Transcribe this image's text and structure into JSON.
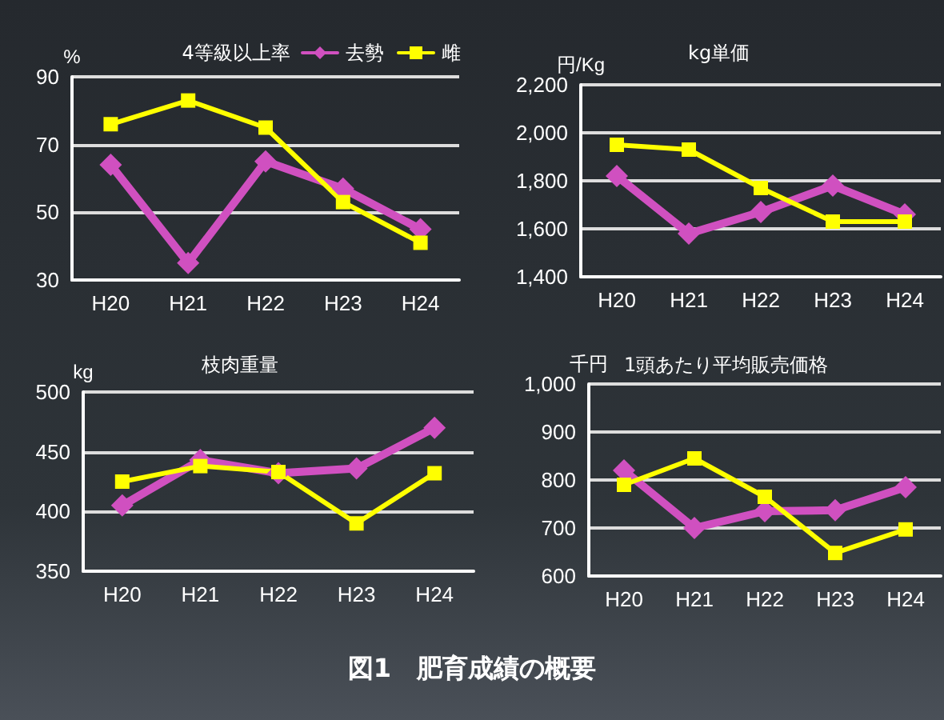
{
  "chart_data": [
    {
      "type": "line",
      "title": "4等級以上率",
      "ylabel": "%",
      "categories": [
        "H20",
        "H21",
        "H22",
        "H23",
        "H24"
      ],
      "ylim": [
        30,
        90
      ],
      "yticks": [
        30,
        50,
        70,
        90
      ],
      "grid": "y",
      "legend": "top right",
      "series": [
        {
          "name": "去勢",
          "color": "#d050c0",
          "marker": "diamond",
          "values": [
            64,
            35,
            65,
            57,
            45
          ]
        },
        {
          "name": "雌",
          "color": "#ffff00",
          "marker": "square",
          "values": [
            76,
            83,
            75,
            53,
            41
          ]
        }
      ]
    },
    {
      "type": "line",
      "title": "kg単価",
      "ylabel": "円/Kg",
      "categories": [
        "H20",
        "H21",
        "H22",
        "H23",
        "H24"
      ],
      "ylim": [
        1400,
        2200
      ],
      "yticks": [
        {
          "value": 1400,
          "label": "1,400"
        },
        {
          "value": 1600,
          "label": "1,600"
        },
        {
          "value": 1800,
          "label": "1,800"
        },
        {
          "value": 2000,
          "label": "2,000"
        },
        {
          "value": 2200,
          "label": "2,200"
        }
      ],
      "grid": "y",
      "series": [
        {
          "color": "#d050c0",
          "marker": "diamond",
          "values": [
            1820,
            1580,
            1670,
            1780,
            1660
          ]
        },
        {
          "color": "#ffff00",
          "marker": "square",
          "values": [
            1950,
            1930,
            1770,
            1630,
            1630
          ]
        }
      ]
    },
    {
      "type": "line",
      "title": "枝肉重量",
      "ylabel": "kg",
      "categories": [
        "H20",
        "H21",
        "H22",
        "H23",
        "H24"
      ],
      "ylim": [
        350,
        500
      ],
      "yticks": [
        350,
        400,
        450,
        500
      ],
      "grid": "y",
      "series": [
        {
          "color": "#d050c0",
          "marker": "diamond",
          "values": [
            405,
            443,
            432,
            436,
            470
          ]
        },
        {
          "color": "#ffff00",
          "marker": "square",
          "values": [
            425,
            438,
            433,
            390,
            432
          ]
        }
      ]
    },
    {
      "type": "line",
      "title": "1頭あたり平均販売価格",
      "ylabel": "千円",
      "categories": [
        "H20",
        "H21",
        "H22",
        "H23",
        "H24"
      ],
      "ylim": [
        600,
        1000
      ],
      "yticks": [
        600,
        700,
        800,
        900,
        {
          "value": 1000,
          "label": "1,000"
        }
      ],
      "grid": "y",
      "annotations": [
        "図1　肥育成績の概要"
      ],
      "series": [
        {
          "color": "#d050c0",
          "marker": "diamond",
          "values": [
            820,
            700,
            735,
            737,
            785
          ]
        },
        {
          "color": "#ffff00",
          "marker": "square",
          "values": [
            790,
            845,
            765,
            648,
            697
          ]
        }
      ]
    }
  ]
}
